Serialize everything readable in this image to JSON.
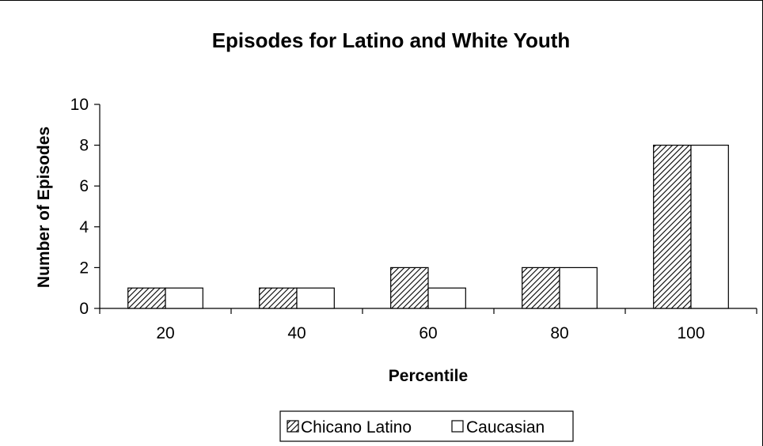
{
  "chart_data": {
    "type": "bar",
    "title": "Episodes for Latino and White Youth",
    "xlabel": "Percentile",
    "ylabel": "Number of Episodes",
    "categories": [
      "20",
      "40",
      "60",
      "80",
      "100"
    ],
    "series": [
      {
        "name": "Chicano Latino",
        "values": [
          1,
          1,
          2,
          2,
          8
        ],
        "fill": "hatch"
      },
      {
        "name": "Caucasian",
        "values": [
          1,
          1,
          1,
          2,
          8
        ],
        "fill": "#ffffff"
      }
    ],
    "ylim": [
      0,
      10
    ],
    "yticks": [
      0,
      2,
      4,
      6,
      8,
      10
    ],
    "grid": false,
    "legend_position": "bottom"
  }
}
